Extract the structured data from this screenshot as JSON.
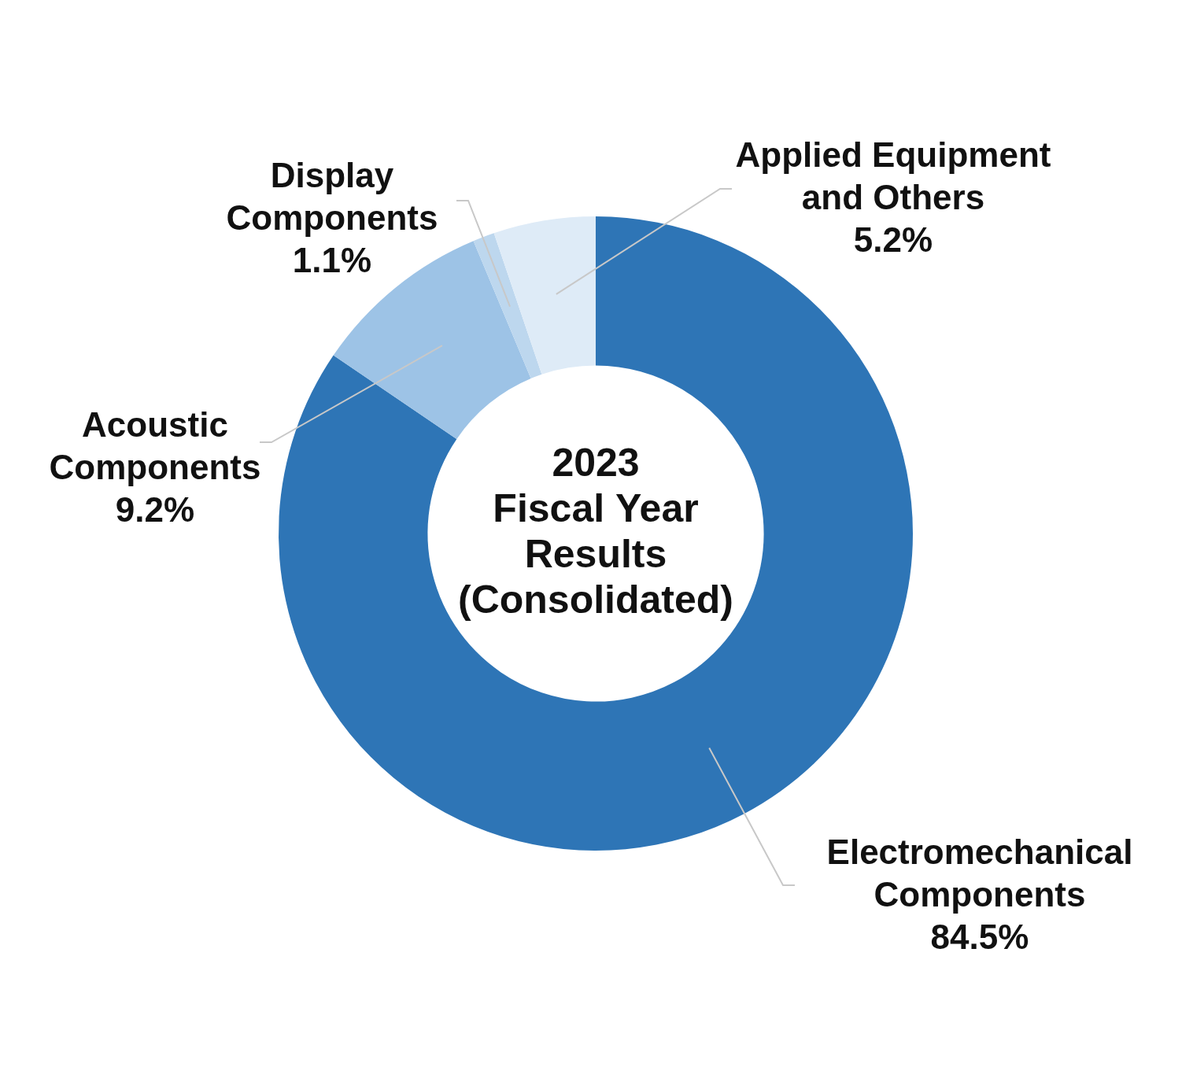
{
  "chart_data": {
    "type": "doughnut",
    "title": "2023\nFiscal Year\nResults\n(Consolidated)",
    "categories": [
      "Electromechanical\nComponents",
      "Acoustic\nComponents",
      "Display\nComponents",
      "Applied Equipment\nand Others"
    ],
    "values": [
      84.5,
      9.2,
      1.1,
      5.2
    ],
    "value_labels": [
      "84.5%",
      "9.2%",
      "1.1%",
      "5.2%"
    ],
    "colors": [
      "#2e75b6",
      "#9dc3e6",
      "#bdd7ee",
      "#deebf7"
    ],
    "data_labels": true,
    "legend": false
  }
}
